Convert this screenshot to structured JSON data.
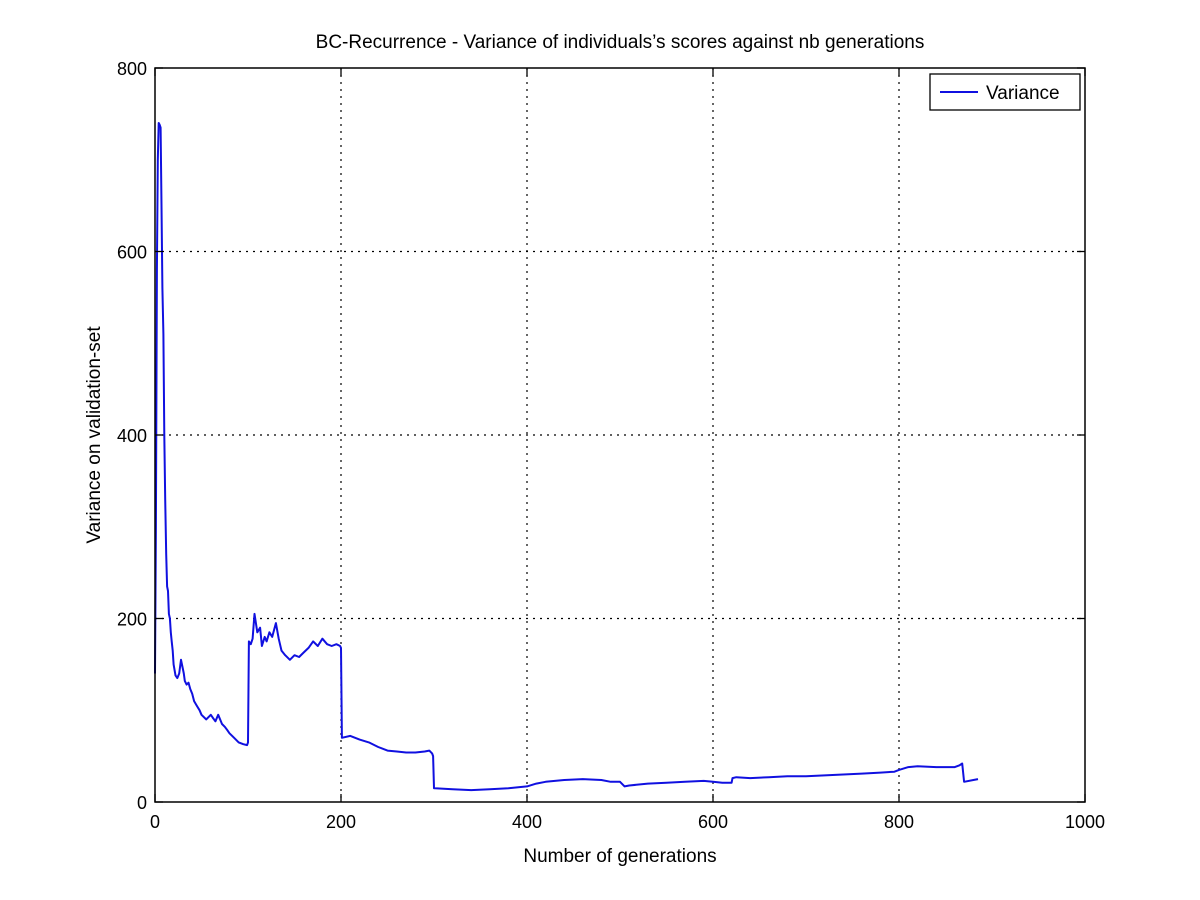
{
  "chart_data": {
    "type": "line",
    "title": "BC-Recurrence - Variance of individuals’s scores against nb generations",
    "xlabel": "Number of generations",
    "ylabel": "Variance on validation-set",
    "xlim": [
      0,
      1000
    ],
    "ylim": [
      0,
      800
    ],
    "xticks": [
      0,
      200,
      400,
      600,
      800,
      1000
    ],
    "yticks": [
      0,
      200,
      400,
      600,
      800
    ],
    "grid": true,
    "legend_position": "top-right",
    "colors": {
      "series": "#1010e0",
      "grid": "#000000",
      "axes": "#000000"
    },
    "series": [
      {
        "name": "Variance",
        "x": [
          0,
          1,
          2,
          3,
          4,
          5,
          6,
          7,
          8,
          9,
          10,
          11,
          12,
          13,
          14,
          15,
          16,
          17,
          18,
          19,
          20,
          22,
          24,
          26,
          28,
          30,
          31,
          32,
          34,
          36,
          38,
          40,
          42,
          45,
          48,
          50,
          55,
          60,
          62,
          65,
          68,
          70,
          72,
          75,
          78,
          80,
          85,
          90,
          95,
          99,
          100,
          101,
          103,
          105,
          107,
          110,
          113,
          115,
          118,
          120,
          123,
          126,
          130,
          133,
          136,
          140,
          145,
          150,
          155,
          160,
          165,
          170,
          175,
          180,
          185,
          190,
          195,
          199,
          200,
          201,
          210,
          220,
          230,
          240,
          250,
          260,
          270,
          280,
          290,
          295,
          298,
          299,
          300,
          301,
          320,
          340,
          360,
          380,
          400,
          410,
          420,
          440,
          460,
          480,
          490,
          500,
          505,
          510,
          530,
          550,
          570,
          590,
          600,
          610,
          620,
          621,
          625,
          640,
          660,
          680,
          700,
          720,
          740,
          760,
          780,
          795,
          800,
          810,
          820,
          840,
          860,
          865,
          868,
          870,
          880,
          885
        ],
        "y": [
          140,
          300,
          580,
          700,
          740,
          738,
          735,
          650,
          560,
          510,
          400,
          330,
          270,
          235,
          230,
          205,
          200,
          185,
          175,
          165,
          150,
          138,
          135,
          140,
          155,
          145,
          140,
          132,
          128,
          130,
          123,
          118,
          110,
          105,
          100,
          95,
          90,
          95,
          92,
          88,
          95,
          90,
          85,
          82,
          78,
          75,
          70,
          65,
          63,
          62,
          65,
          175,
          172,
          178,
          205,
          185,
          190,
          170,
          180,
          175,
          185,
          180,
          195,
          178,
          165,
          160,
          155,
          160,
          158,
          163,
          168,
          175,
          170,
          178,
          172,
          170,
          172,
          170,
          168,
          70,
          72,
          68,
          65,
          60,
          56,
          55,
          54,
          54,
          55,
          56,
          53,
          50,
          15,
          15,
          14,
          13,
          14,
          15,
          17,
          20,
          22,
          24,
          25,
          24,
          22,
          22,
          17,
          18,
          20,
          21,
          22,
          23,
          22,
          21,
          21,
          26,
          27,
          26,
          27,
          28,
          28,
          29,
          30,
          31,
          32,
          33,
          35,
          38,
          39,
          38,
          38,
          40,
          42,
          22,
          24,
          25
        ]
      }
    ]
  }
}
